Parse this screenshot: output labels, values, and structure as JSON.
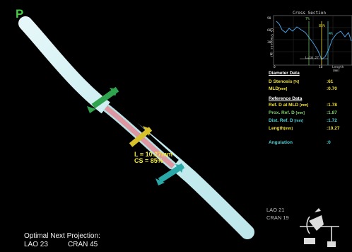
{
  "view": {
    "marker": "P",
    "vessel_labels": {
      "length": "L = 10.27mm",
      "cs": "CS = 85%"
    }
  },
  "cross_section": {
    "title": "Cross Section",
    "y_axis_label": "CS Stenosis (%)",
    "x_axis_label": "Length (mm)",
    "markers": [
      {
        "label": "7%",
        "color": "#7fd36a"
      },
      {
        "label": "85%",
        "color": "#f3e23a"
      },
      {
        "label": "4%",
        "color": "#4fd1d6"
      }
    ],
    "y_ticks": [
      "90",
      "60",
      "30",
      "0"
    ],
    "x_ticks": [
      "0",
      "10"
    ],
    "length_readout": "L=10.27"
  },
  "diameter": {
    "title": "Diameter Data",
    "rows": [
      {
        "label": "D Stenosis",
        "unit": "[%]",
        "value": ":61"
      },
      {
        "label": "MLD",
        "unit": "[mm]",
        "value": ":0.70"
      }
    ]
  },
  "reference": {
    "title": "Reference Data",
    "rows": [
      {
        "label": "Ref. D at MLD",
        "unit": "[mm]",
        "value": ":1.78",
        "color": "#f3e23a"
      },
      {
        "label": "Prox. Ref. D",
        "unit": "[mm]",
        "value": ":1.87",
        "color": "#7fd36a"
      },
      {
        "label": "Dist. Ref. D",
        "unit": "[mm]",
        "value": ":1.72",
        "color": "#4fd1d6"
      },
      {
        "label": "Length",
        "unit": "[mm]",
        "value": ":10.27",
        "color": "#f3e23a"
      }
    ]
  },
  "angulation": {
    "label": "Angulation",
    "value": ":0"
  },
  "projection": {
    "lao": "LAO 21",
    "cran": "CRAN 19"
  },
  "footer": {
    "title": "Optimal Next Projection:",
    "lao": "LAO 23",
    "cran": "CRAN 45"
  }
}
